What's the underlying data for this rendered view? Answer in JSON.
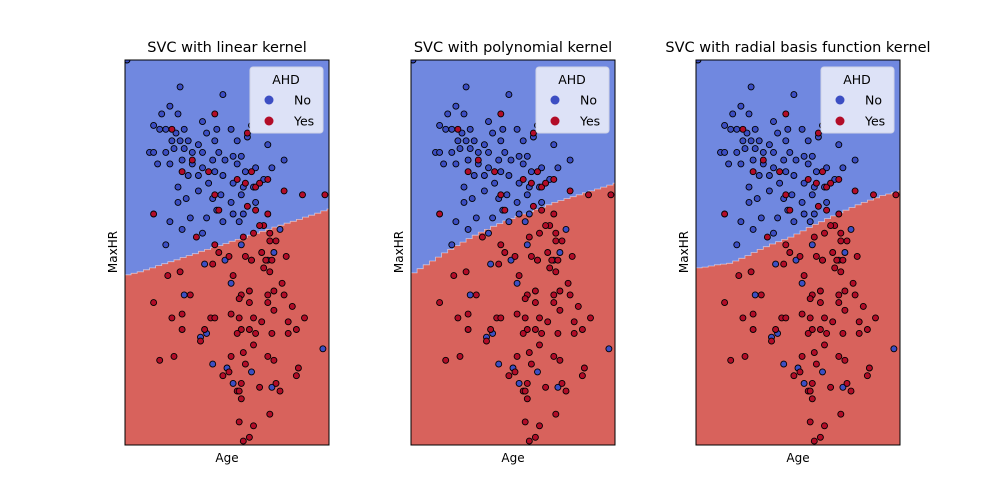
{
  "colors": {
    "no_region": "#7088e0",
    "yes_region": "#d8625c",
    "no_point": "#3c4ec3",
    "yes_point": "#b20c28",
    "legend_bg": "#dde2f7",
    "legend_border": "#cfd3e6",
    "boundary": "#ffffff"
  },
  "chart_data": [
    {
      "type": "scatter",
      "title": "SVC with linear kernel",
      "xlabel": "Age",
      "ylabel": "MaxHR",
      "xticks": "hidden",
      "yticks": "hidden",
      "xlim": [
        0,
        100
      ],
      "ylim": [
        0,
        100
      ],
      "legend": {
        "title": "AHD",
        "entries": [
          "No",
          "Yes"
        ],
        "position": "top-right"
      },
      "decision_boundary": [
        [
          0,
          44.2
        ],
        [
          3,
          44.6
        ],
        [
          6,
          45.0
        ],
        [
          9,
          45.5
        ],
        [
          12,
          46.0
        ],
        [
          15,
          46.6
        ],
        [
          18,
          47.1
        ],
        [
          21,
          47.6
        ],
        [
          24,
          48.1
        ],
        [
          27,
          48.7
        ],
        [
          30,
          49.2
        ],
        [
          33,
          49.7
        ],
        [
          36,
          50.3
        ],
        [
          39,
          50.8
        ],
        [
          42,
          51.3
        ],
        [
          45,
          51.8
        ],
        [
          48,
          52.3
        ],
        [
          51,
          52.9
        ],
        [
          54,
          53.4
        ],
        [
          57,
          53.9
        ],
        [
          60,
          54.5
        ],
        [
          63,
          55.0
        ],
        [
          66,
          55.5
        ],
        [
          69,
          56.0
        ],
        [
          72,
          56.6
        ],
        [
          75,
          57.1
        ],
        [
          78,
          57.6
        ],
        [
          81,
          58.1
        ],
        [
          84,
          58.6
        ],
        [
          87,
          59.2
        ],
        [
          90,
          59.7
        ],
        [
          93,
          60.2
        ],
        [
          96,
          60.8
        ],
        [
          99,
          61.3
        ],
        [
          100,
          61.5
        ]
      ]
    },
    {
      "type": "scatter",
      "title": "SVC with polynomial kernel",
      "xlabel": "Age",
      "ylabel": "MaxHR",
      "xticks": "hidden",
      "yticks": "hidden",
      "xlim": [
        0,
        100
      ],
      "ylim": [
        0,
        100
      ],
      "legend": {
        "title": "AHD",
        "entries": [
          "No",
          "Yes"
        ],
        "position": "top-right"
      },
      "decision_boundary": [
        [
          0,
          44.7
        ],
        [
          3,
          45.8
        ],
        [
          6,
          46.8
        ],
        [
          9,
          47.8
        ],
        [
          12,
          48.8
        ],
        [
          15,
          49.9
        ],
        [
          18,
          50.8
        ],
        [
          21,
          51.8
        ],
        [
          24,
          52.7
        ],
        [
          27,
          53.6
        ],
        [
          30,
          54.5
        ],
        [
          33,
          55.3
        ],
        [
          36,
          56.0
        ],
        [
          39,
          56.8
        ],
        [
          42,
          57.5
        ],
        [
          45,
          58.2
        ],
        [
          48,
          58.8
        ],
        [
          51,
          59.4
        ],
        [
          54,
          60.0
        ],
        [
          57,
          60.6
        ],
        [
          60,
          61.2
        ],
        [
          63,
          61.8
        ],
        [
          66,
          62.4
        ],
        [
          69,
          63.0
        ],
        [
          72,
          63.5
        ],
        [
          75,
          64.0
        ],
        [
          78,
          64.5
        ],
        [
          81,
          65.0
        ],
        [
          84,
          65.5
        ],
        [
          87,
          66.0
        ],
        [
          90,
          66.5
        ],
        [
          93,
          67.0
        ],
        [
          96,
          67.5
        ],
        [
          99,
          68.0
        ],
        [
          100,
          68.1
        ]
      ]
    },
    {
      "type": "scatter",
      "title": "SVC with radial basis function kernel",
      "xlabel": "Age",
      "ylabel": "MaxHR",
      "xticks": "hidden",
      "yticks": "hidden",
      "xlim": [
        0,
        100
      ],
      "ylim": [
        0,
        100
      ],
      "legend": {
        "title": "AHD",
        "entries": [
          "No",
          "Yes"
        ],
        "position": "top-right"
      },
      "decision_boundary": [
        [
          0,
          46.0
        ],
        [
          3,
          46.2
        ],
        [
          6,
          46.5
        ],
        [
          9,
          46.8
        ],
        [
          12,
          47.0
        ],
        [
          15,
          47.2
        ],
        [
          18,
          47.8
        ],
        [
          21,
          48.5
        ],
        [
          24,
          49.2
        ],
        [
          27,
          50.0
        ],
        [
          30,
          50.8
        ],
        [
          33,
          51.5
        ],
        [
          36,
          52.2
        ],
        [
          39,
          52.8
        ],
        [
          42,
          53.4
        ],
        [
          45,
          54.0
        ],
        [
          48,
          54.8
        ],
        [
          51,
          55.6
        ],
        [
          54,
          56.5
        ],
        [
          57,
          57.3
        ],
        [
          60,
          58.0
        ],
        [
          63,
          58.8
        ],
        [
          66,
          59.5
        ],
        [
          69,
          60.3
        ],
        [
          72,
          61.0
        ],
        [
          75,
          61.7
        ],
        [
          78,
          62.4
        ],
        [
          81,
          63.0
        ],
        [
          84,
          63.6
        ],
        [
          87,
          64.2
        ],
        [
          90,
          64.8
        ],
        [
          93,
          65.2
        ],
        [
          96,
          65.6
        ],
        [
          99,
          66.0
        ],
        [
          100,
          66.1
        ]
      ]
    }
  ],
  "points": {
    "no": [
      [
        1,
        100
      ],
      [
        27,
        93
      ],
      [
        22,
        88
      ],
      [
        18,
        86
      ],
      [
        26,
        86
      ],
      [
        48,
        91
      ],
      [
        38,
        84
      ],
      [
        45,
        82
      ],
      [
        14,
        83
      ],
      [
        17,
        82
      ],
      [
        20,
        82
      ],
      [
        25,
        81
      ],
      [
        29,
        82
      ],
      [
        40,
        81
      ],
      [
        52,
        82
      ],
      [
        62,
        83
      ],
      [
        23,
        79
      ],
      [
        27,
        79
      ],
      [
        31,
        79
      ],
      [
        36,
        78
      ],
      [
        44,
        79
      ],
      [
        55,
        79
      ],
      [
        60,
        80
      ],
      [
        70,
        78
      ],
      [
        12,
        76
      ],
      [
        14,
        76
      ],
      [
        20,
        76
      ],
      [
        24,
        77
      ],
      [
        29,
        77
      ],
      [
        33,
        76
      ],
      [
        38,
        76
      ],
      [
        43,
        74
      ],
      [
        46,
        76
      ],
      [
        53,
        75
      ],
      [
        57,
        75
      ],
      [
        16,
        73
      ],
      [
        22,
        73
      ],
      [
        28,
        74
      ],
      [
        33,
        73
      ],
      [
        38,
        72
      ],
      [
        44,
        71
      ],
      [
        49,
        74
      ],
      [
        55,
        73
      ],
      [
        59,
        71
      ],
      [
        64,
        72
      ],
      [
        72,
        72
      ],
      [
        78,
        74
      ],
      [
        31,
        70
      ],
      [
        36,
        70
      ],
      [
        41,
        68
      ],
      [
        48,
        70
      ],
      [
        53,
        68
      ],
      [
        58,
        67
      ],
      [
        68,
        69
      ],
      [
        26,
        67
      ],
      [
        43,
        64
      ],
      [
        47,
        65
      ],
      [
        52,
        63
      ],
      [
        57,
        65
      ],
      [
        63,
        67
      ],
      [
        26,
        63
      ],
      [
        30,
        64
      ],
      [
        36,
        66
      ],
      [
        45,
        61
      ],
      [
        53,
        60
      ],
      [
        58,
        60
      ],
      [
        64,
        63
      ],
      [
        22,
        58
      ],
      [
        28,
        56
      ],
      [
        32,
        59
      ],
      [
        40,
        59
      ],
      [
        48,
        58
      ],
      [
        56,
        58
      ],
      [
        38,
        55
      ],
      [
        20,
        52
      ],
      [
        39,
        47
      ],
      [
        57,
        52
      ],
      [
        62,
        48
      ],
      [
        49,
        48
      ],
      [
        70,
        48
      ],
      [
        73,
        50
      ],
      [
        76,
        56
      ],
      [
        52,
        42
      ],
      [
        29,
        39
      ],
      [
        40,
        29
      ],
      [
        37,
        28
      ],
      [
        97,
        25
      ],
      [
        50,
        20
      ],
      [
        43,
        21
      ],
      [
        53,
        16
      ],
      [
        62,
        19
      ],
      [
        72,
        15
      ]
    ],
    "yes": [
      [
        44,
        86
      ],
      [
        23,
        82
      ],
      [
        67,
        83
      ],
      [
        82,
        82
      ],
      [
        60,
        81
      ],
      [
        33,
        74
      ],
      [
        28,
        71
      ],
      [
        41,
        71
      ],
      [
        62,
        71
      ],
      [
        55,
        69
      ],
      [
        59,
        68
      ],
      [
        64,
        67
      ],
      [
        66,
        68
      ],
      [
        70,
        69
      ],
      [
        78,
        66
      ],
      [
        87,
        65
      ],
      [
        98,
        65
      ],
      [
        14,
        60
      ],
      [
        46,
        61
      ],
      [
        44,
        65
      ],
      [
        60,
        62
      ],
      [
        64,
        61
      ],
      [
        68,
        57
      ],
      [
        70,
        60
      ],
      [
        63,
        55
      ],
      [
        66,
        57
      ],
      [
        71,
        55
      ],
      [
        74,
        53
      ],
      [
        58,
        54
      ],
      [
        44,
        52
      ],
      [
        46,
        50
      ],
      [
        51,
        49
      ],
      [
        59,
        49
      ],
      [
        67,
        50
      ],
      [
        69,
        48
      ],
      [
        72,
        48
      ],
      [
        79,
        49
      ],
      [
        35,
        54
      ],
      [
        71,
        53
      ],
      [
        62,
        48
      ],
      [
        43,
        47
      ],
      [
        68,
        46
      ],
      [
        71,
        45
      ],
      [
        27,
        45
      ],
      [
        53,
        44
      ],
      [
        77,
        42
      ],
      [
        21,
        44
      ],
      [
        61,
        40
      ],
      [
        73,
        40
      ],
      [
        14,
        37
      ],
      [
        32,
        39
      ],
      [
        57,
        39
      ],
      [
        70,
        39
      ],
      [
        78,
        39
      ],
      [
        73,
        35
      ],
      [
        28,
        34
      ],
      [
        56,
        38
      ],
      [
        61,
        37
      ],
      [
        70,
        37
      ],
      [
        82,
        36
      ],
      [
        23,
        33
      ],
      [
        42,
        33
      ],
      [
        44,
        33
      ],
      [
        52,
        34
      ],
      [
        56,
        33
      ],
      [
        63,
        33
      ],
      [
        67,
        32
      ],
      [
        80,
        32
      ],
      [
        88,
        33
      ],
      [
        28,
        30
      ],
      [
        39,
        30
      ],
      [
        57,
        30
      ],
      [
        61,
        30
      ],
      [
        64,
        29
      ],
      [
        72,
        29
      ],
      [
        84,
        30
      ],
      [
        55,
        29
      ],
      [
        80,
        29
      ],
      [
        63,
        26
      ],
      [
        37,
        27
      ],
      [
        24,
        23
      ],
      [
        52,
        23
      ],
      [
        58,
        24
      ],
      [
        70,
        23
      ],
      [
        17,
        22
      ],
      [
        59,
        21
      ],
      [
        73,
        22
      ],
      [
        85,
        20
      ],
      [
        51,
        19
      ],
      [
        84,
        18
      ],
      [
        74,
        16
      ],
      [
        48,
        18
      ],
      [
        57,
        16
      ],
      [
        55,
        14
      ],
      [
        66,
        15
      ],
      [
        76,
        14
      ],
      [
        56,
        14
      ],
      [
        57,
        12
      ],
      [
        56,
        6
      ],
      [
        71,
        8
      ],
      [
        63,
        5
      ],
      [
        61,
        2
      ],
      [
        58,
        1
      ]
    ]
  }
}
